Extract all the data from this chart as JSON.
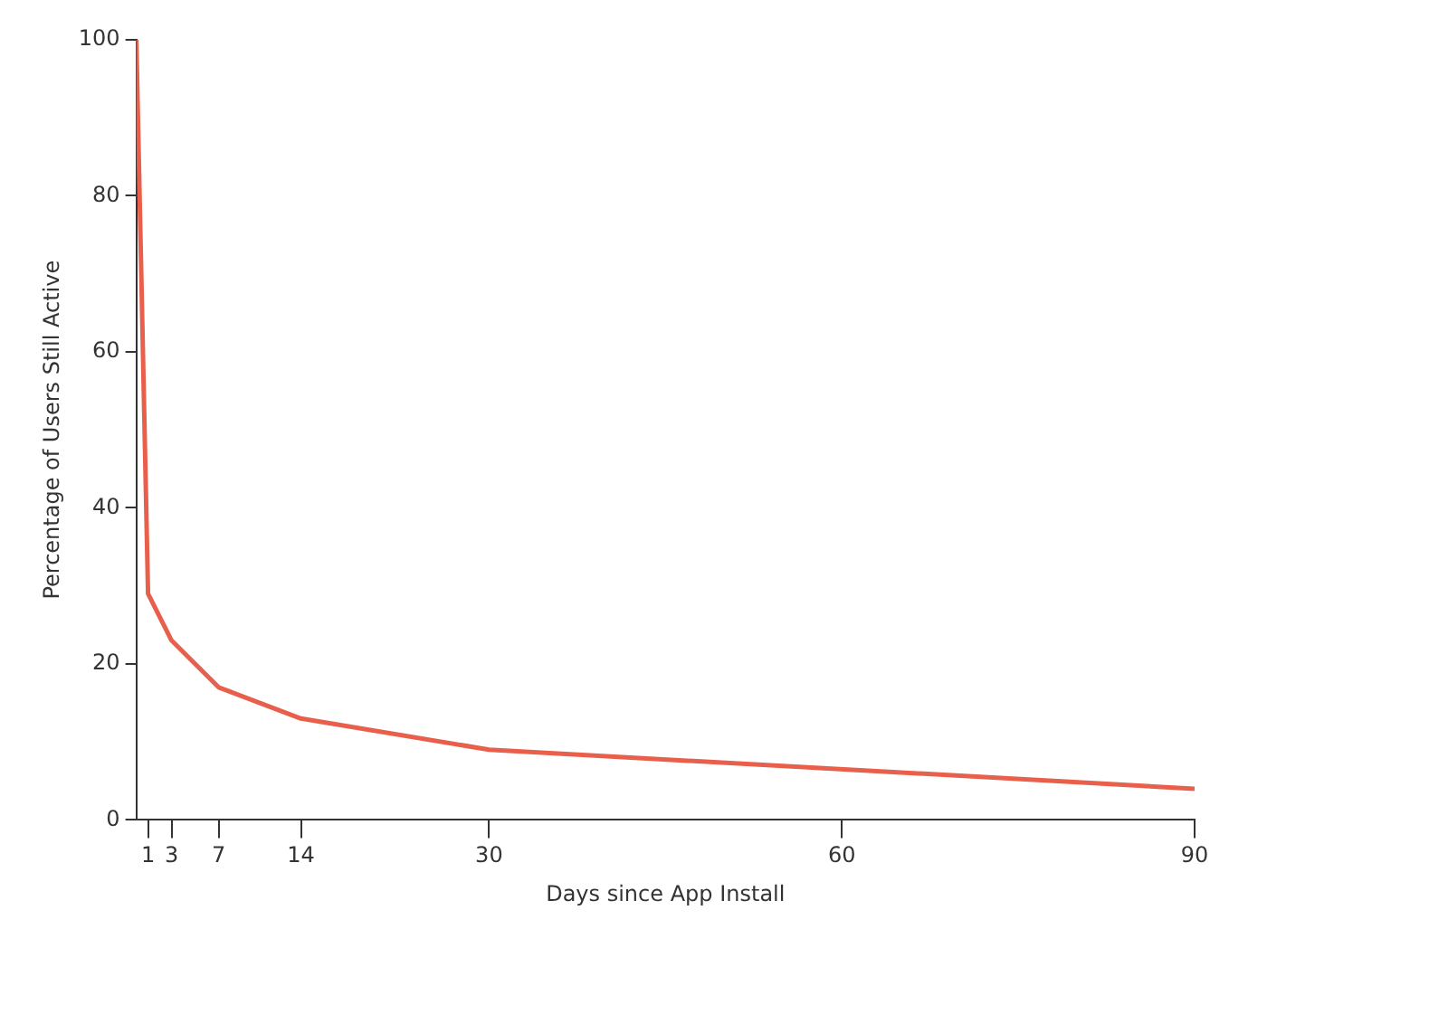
{
  "chart_data": {
    "type": "line",
    "xlabel": "Days since App Install",
    "ylabel": "Percentage of Users Still Active",
    "x": [
      0,
      1,
      3,
      7,
      14,
      30,
      90
    ],
    "series": [
      {
        "color": "#e8604c",
        "values": [
          100,
          29,
          23,
          17,
          13,
          9,
          4
        ]
      }
    ],
    "xlim": [
      0,
      90
    ],
    "xticks": [
      1,
      3,
      7,
      14,
      30,
      60,
      90
    ],
    "ylim": [
      0,
      100
    ],
    "yticks": [
      0,
      20,
      40,
      60,
      80,
      100
    ],
    "grid": false,
    "legend": false,
    "marker": "none",
    "line_style": "solid"
  }
}
